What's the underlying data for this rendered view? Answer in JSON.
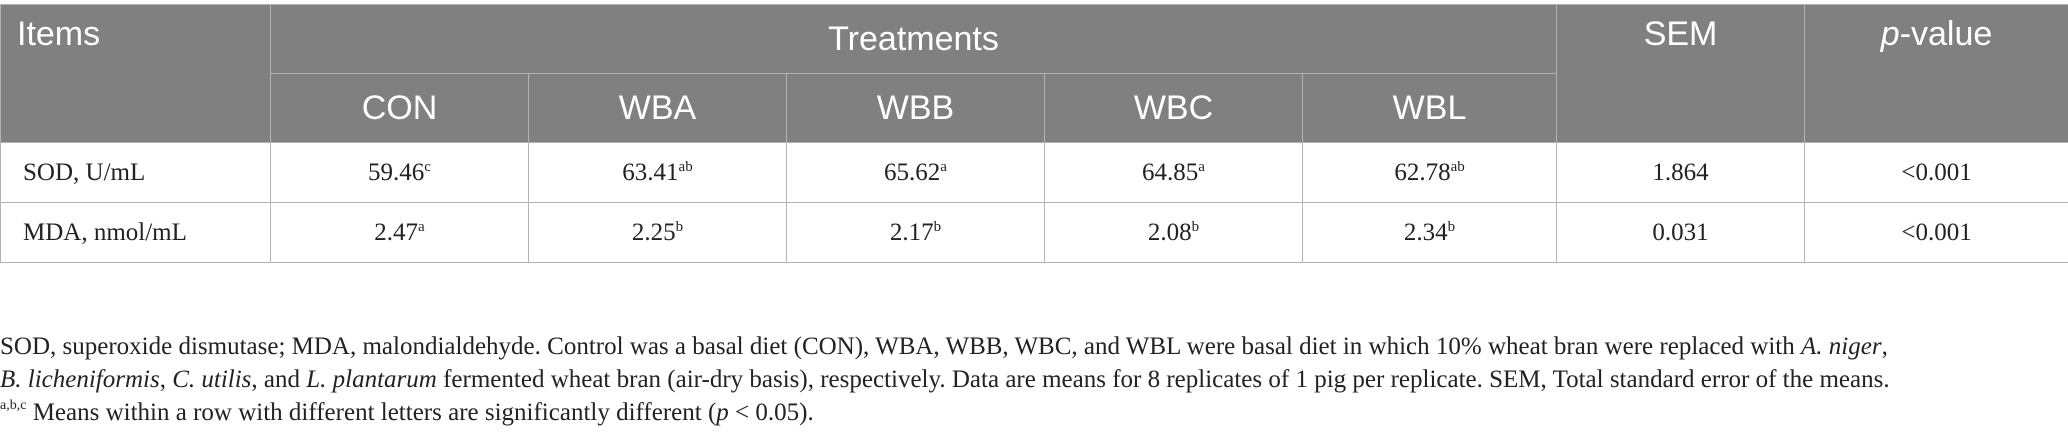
{
  "table": {
    "header": {
      "items": "Items",
      "treatments": "Treatments",
      "sem": "SEM",
      "pvalue_italic": "p",
      "pvalue_rest": "-value",
      "groups": [
        "CON",
        "WBA",
        "WBB",
        "WBC",
        "WBL"
      ]
    },
    "rows": [
      {
        "label": "SOD, U/mL",
        "values": [
          "59.46",
          "63.41",
          "65.62",
          "64.85",
          "62.78"
        ],
        "sups": [
          "c",
          "ab",
          "a",
          "a",
          "ab"
        ],
        "sem": "1.864",
        "pvalue": "<0.001"
      },
      {
        "label": "MDA, nmol/mL",
        "values": [
          "2.47",
          "2.25",
          "2.17",
          "2.08",
          "2.34"
        ],
        "sups": [
          "a",
          "b",
          "b",
          "b",
          "b"
        ],
        "sem": "0.031",
        "pvalue": "<0.001"
      }
    ]
  },
  "footnotes": {
    "line1_a": "SOD, superoxide dismutase; MDA, malondialdehyde. Control was a basal diet (CON), WBA, WBB, WBC, and WBL were basal diet in which 10% wheat bran were replaced with ",
    "line1_species1": "A. niger",
    "line1_b": ",",
    "line2_species2": "B. licheniformis",
    "line2_a": ", ",
    "line2_species3": "C. utilis",
    "line2_b": ", and ",
    "line2_species4": "L. plantarum",
    "line2_c": " fermented wheat bran (air-dry basis), respectively. Data are means for 8 replicates of 1 pig per replicate. SEM, Total standard error of the means.",
    "line3_sup": "a,b,c",
    "line3_a": " Means within a row with different letters are significantly different (",
    "line3_p": "p",
    "line3_b": " < 0.05)."
  }
}
